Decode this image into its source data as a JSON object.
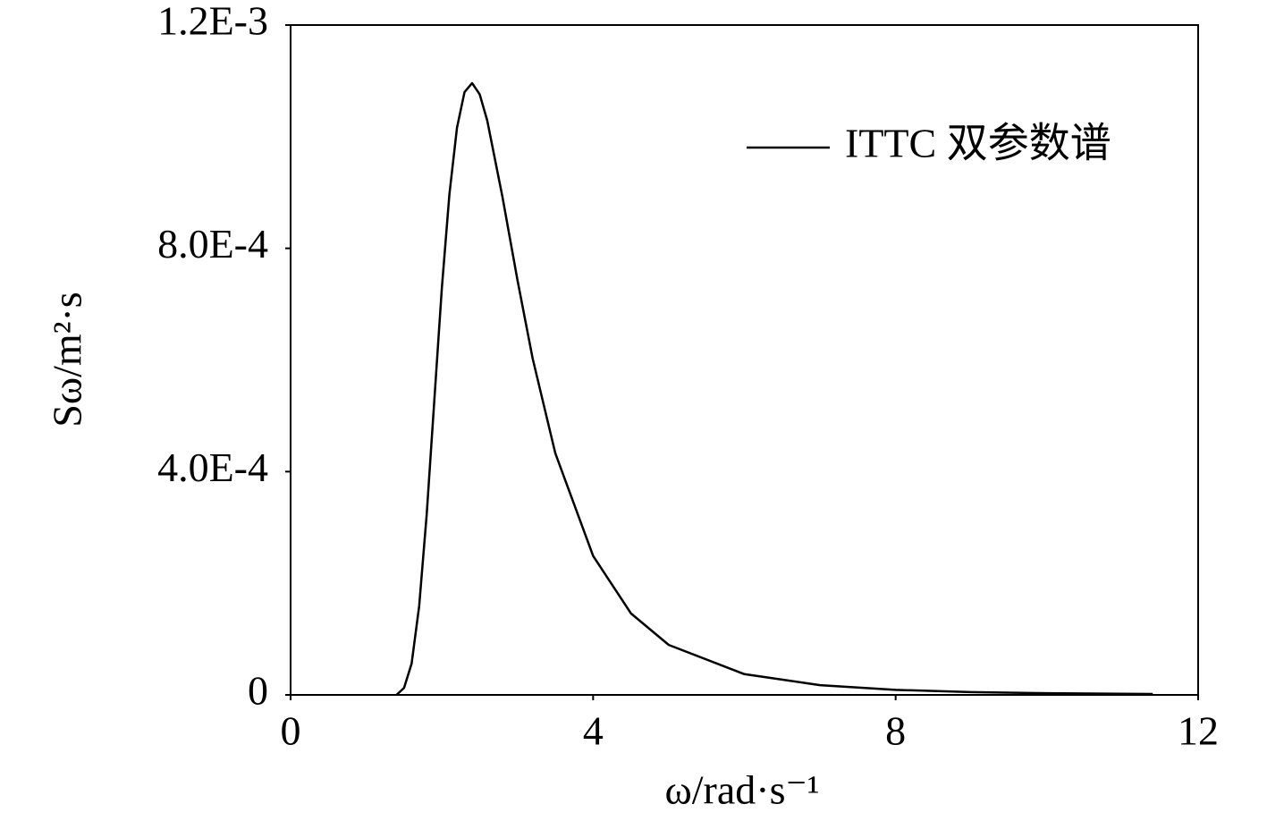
{
  "chart_data": {
    "type": "line",
    "x_label": "ω/rad·s⁻¹",
    "y_label": "Sω/m²·s",
    "x": [
      1.4,
      1.5,
      1.6,
      1.7,
      1.8,
      1.9,
      2.0,
      2.1,
      2.2,
      2.3,
      2.4,
      2.5,
      2.6,
      2.8,
      3.0,
      3.2,
      3.5,
      4.0,
      4.5,
      5.0,
      6.0,
      7.0,
      8.0,
      9.0,
      10.0,
      11.4
    ],
    "series": [
      {
        "name": "ITTC 双参数谱",
        "color": "#000000",
        "values": [
          0,
          1.24e-05,
          5.6e-05,
          0.000159,
          0.000324,
          0.000527,
          0.000729,
          0.000897,
          0.001016,
          0.00108,
          0.001096,
          0.001076,
          0.001029,
          0.000893,
          0.000743,
          0.000603,
          0.000433,
          0.000249,
          0.000146,
          8.95e-05,
          3.72e-05,
          1.75e-05,
          9e-06,
          5e-06,
          3e-06,
          1.6e-06
        ]
      }
    ],
    "xlim": [
      0,
      12
    ],
    "xticks": [
      0,
      4,
      8,
      12
    ],
    "ylim": [
      0,
      0.0012
    ],
    "yticks": [
      0,
      {
        "value": 0.0004,
        "label": "4.0E-4"
      },
      {
        "value": 0.0008,
        "label": "8.0E-4"
      },
      {
        "value": 0.0012,
        "label": "1.2E-3"
      }
    ],
    "legend": "top-right",
    "grid": false
  }
}
